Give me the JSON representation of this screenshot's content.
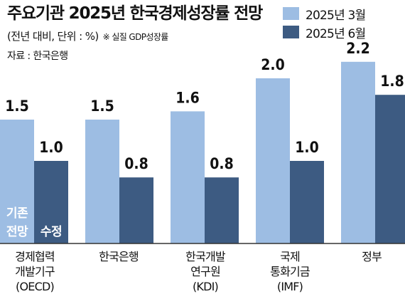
{
  "chart_data": {
    "type": "bar",
    "title": "주요기관 2025년 한국경제성장률 전망",
    "subtitle": "(전년 대비, 단위 : %)",
    "note": "※ 실질 GDP성장률",
    "source": "자료 : 한국은행",
    "categories": [
      [
        "경제협력",
        "개발기구",
        "(OECD)"
      ],
      [
        "한국은행"
      ],
      [
        "한국개발",
        "연구원",
        "(KDI)"
      ],
      [
        "국제",
        "통화기금",
        "(IMF)"
      ],
      [
        "정부"
      ]
    ],
    "series": [
      {
        "name": "2025년 3월",
        "values": [
          1.5,
          1.5,
          1.6,
          2.0,
          2.2
        ],
        "color": "#9dbde3"
      },
      {
        "name": "2025년 6월",
        "values": [
          1.0,
          0.8,
          0.8,
          1.0,
          1.8
        ],
        "color": "#3d5b82"
      }
    ],
    "value_labels": [
      [
        "1.5",
        "1.5",
        "1.6",
        "2.0",
        "2.2"
      ],
      [
        "1.0",
        "0.8",
        "0.8",
        "1.0",
        "1.8"
      ]
    ],
    "bar_labels": [
      [
        "기존",
        "전망"
      ],
      [
        "수정"
      ]
    ],
    "ylim": [
      0,
      2.2
    ],
    "legend": "top-right",
    "grid": false
  }
}
